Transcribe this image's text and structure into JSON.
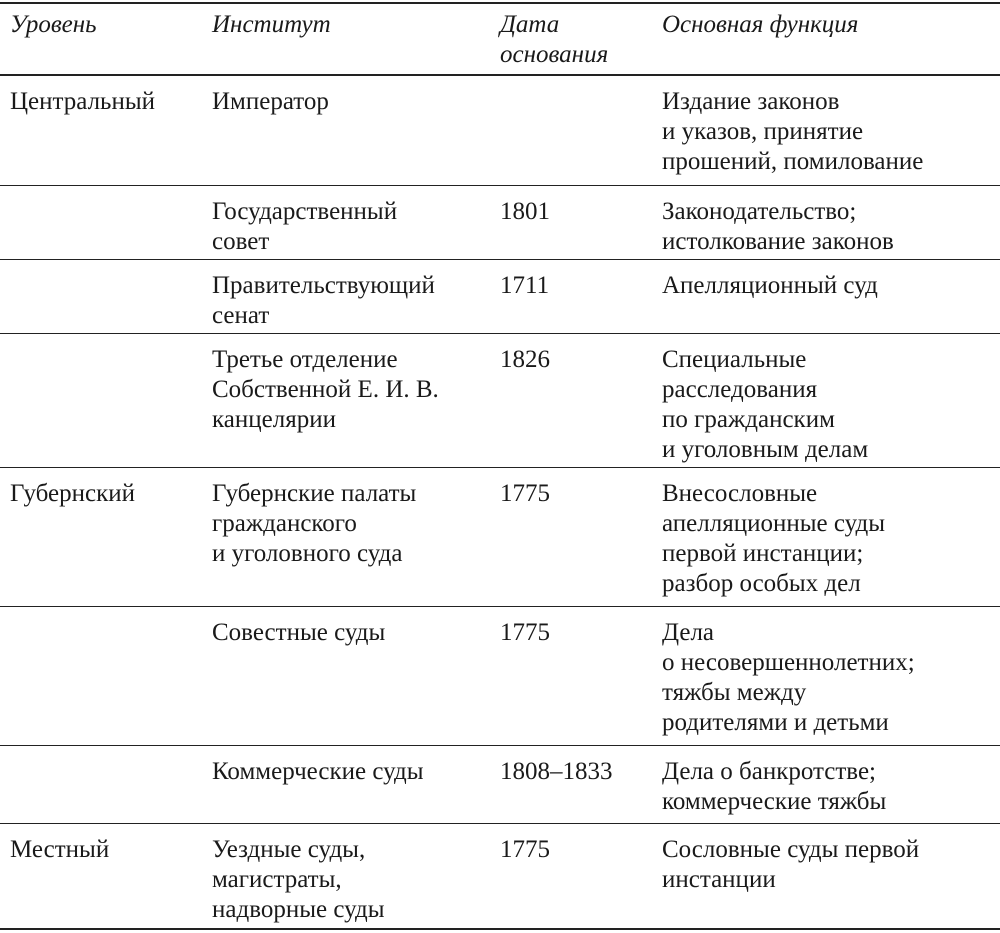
{
  "table": {
    "header": {
      "level": "Уровень",
      "institution": "Институт",
      "date": [
        "Дата",
        "основания"
      ],
      "function": "Основная функция"
    },
    "rows": [
      {
        "level": "Центральный",
        "institution": [
          "Император"
        ],
        "function": [
          "Издание законов",
          "и указов, принятие",
          "прошений, помилование"
        ]
      },
      {
        "institution": [
          "Государственный",
          "совет"
        ],
        "date": "1801",
        "function": [
          "Законодательство;",
          "истолкование законов"
        ]
      },
      {
        "institution": [
          "Правительствующий",
          "сенат"
        ],
        "date": "1711",
        "function": [
          "Апелляционный суд"
        ]
      },
      {
        "institution": [
          "Третье отделение",
          "Собственной Е. И. В.",
          "канцелярии"
        ],
        "date": "1826",
        "function": [
          "Специальные",
          "расследования",
          "по гражданским",
          "и уголовным делам"
        ]
      },
      {
        "level": "Губернский",
        "institution": [
          "Губернские палаты",
          "гражданского",
          "и уголовного суда"
        ],
        "date": "1775",
        "function": [
          "Внесословные",
          "апелляционные суды",
          "первой инстанции;",
          "разбор особых дел"
        ]
      },
      {
        "institution": [
          "Совестные суды"
        ],
        "date": "1775",
        "function": [
          "Дела",
          "о несовершеннолетних;",
          "тяжбы между",
          "родителями и детьми"
        ]
      },
      {
        "institution": [
          "Коммерческие суды"
        ],
        "date": "1808–1833",
        "function": [
          "Дела о банкротстве;",
          "коммерческие тяжбы"
        ]
      },
      {
        "level": "Местный",
        "institution": [
          "Уездные суды,",
          "магистраты,",
          "надворные суды"
        ],
        "date": "1775",
        "function": [
          "Сословные суды первой",
          "инстанции"
        ]
      }
    ]
  }
}
